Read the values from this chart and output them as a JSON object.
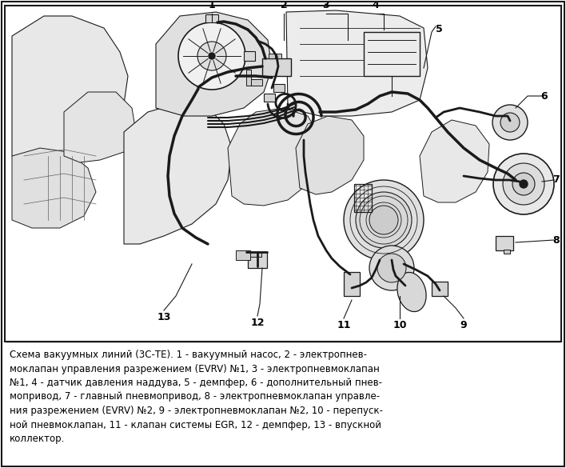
{
  "fig_width": 7.08,
  "fig_height": 5.85,
  "dpi": 100,
  "bg_color": "#ffffff",
  "diagram_bg": "#ffffff",
  "border_color": "#000000",
  "text_color": "#000000",
  "caption_fontsize": 8.5,
  "caption": "Схема вакуумных линий (3С-ТЕ). 1 - вакуумный насос, 2 - электропнев-\nмоклапан управления разрежением (EVRV) №1, 3 - электропневмоклапан\n№1, 4 - датчик давления наддува, 5 - демпфер, 6 - дополнительный пнев-\nмопривод, 7 - главный пневмопривод, 8 - электропневмоклапан управле-\nния разрежением (EVRV) №2, 9 - электропневмоклапан №2, 10 - перепуск-\nной пневмоклапан, 11 - клапан системы EGR, 12 - демпфер, 13 - впускной\nколлектор.",
  "line_color": "#1a1a1a",
  "light_gray": "#c8c8c8",
  "mid_gray": "#a0a0a0",
  "dark_gray": "#606060"
}
